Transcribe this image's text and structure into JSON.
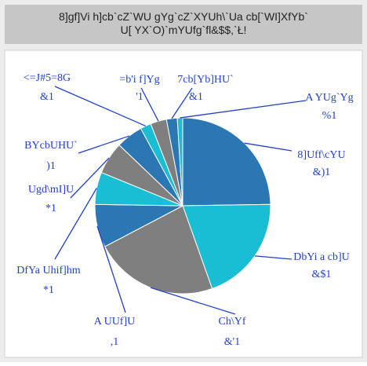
{
  "chart_data": {
    "type": "pie",
    "title": "8]gf]Vi h]cb`cZ`WU gYg`cZ`XYUh\\`Ua cb[`WI]XfYb`U[ YX`O)`mYUfg`fl&$$,`Ł!",
    "categories": [
      "8]Uff\\cYU",
      "DbYi a cb]U",
      "Ch\\Yf",
      "A UUf]U",
      "DfYa Uhif]hm",
      "Ugd\\mI]U",
      "BYcbUHU`",
      "<=J#5=8G",
      "=b'i f]Yg",
      "7cb[Yb]HU`",
      "A YUg`Yg"
    ],
    "values": [
      25,
      20,
      23,
      8,
      6,
      6,
      5,
      2,
      3,
      2,
      1
    ],
    "value_labels": [
      "&)1",
      "&$1",
      "&'1",
      ",1",
      "*1",
      "*1",
      ")1",
      "&1",
      "'1",
      "&1",
      "%1"
    ],
    "colors": [
      "#2a77b4",
      "#19bdd4",
      "#7f7f7f",
      "#2a77b4",
      "#19bdd4",
      "#7f7f7f",
      "#2a77b4",
      "#19bdd4",
      "#7f7f7f",
      "#2a77b4",
      "#19bdd4"
    ]
  }
}
